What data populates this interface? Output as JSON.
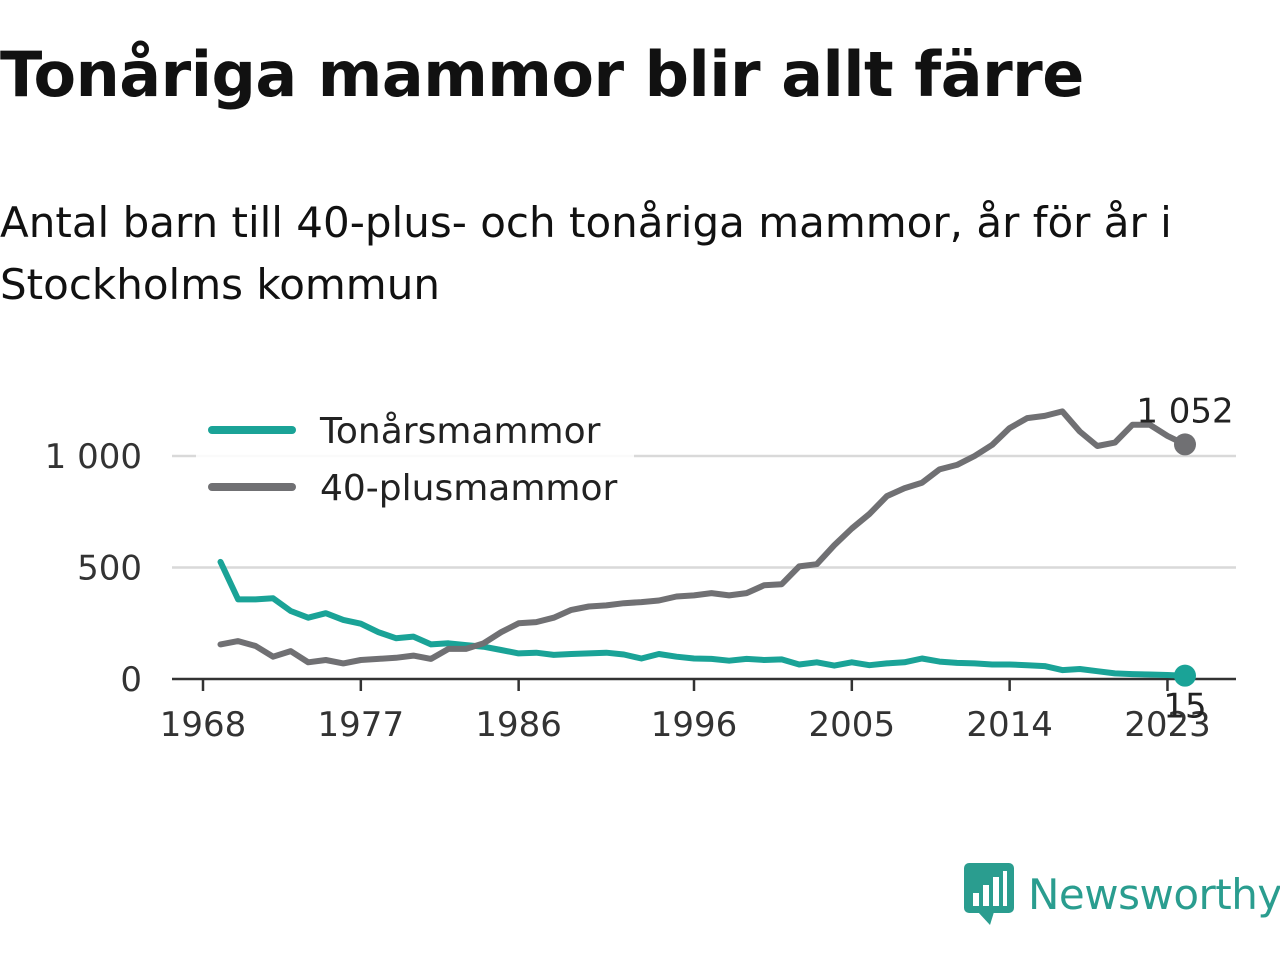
{
  "header": {
    "title": "Tonåriga mammor blir allt färre",
    "subtitle": "Antal barn till 40-plus- och tonåriga mammor, år för år i Stockholms kommun"
  },
  "brand": {
    "name": "Newsworthy",
    "icon": "newsworthy-logo-icon",
    "color": "#2a9d8f"
  },
  "chart_data": {
    "type": "line",
    "title": "Tonåriga mammor blir allt färre",
    "subtitle": "Antal barn till 40-plus- och tonåriga mammor, år för år i Stockholms kommun",
    "xlabel": "",
    "ylabel": "",
    "xlim": [
      1968,
      2025
    ],
    "ylim": [
      0,
      1100
    ],
    "x_ticks": [
      1968,
      1977,
      1986,
      1996,
      2005,
      2014,
      2023
    ],
    "y_ticks": [
      0,
      500,
      1000
    ],
    "y_tick_labels": [
      "0",
      "500",
      "1 000"
    ],
    "grid": "horizontal",
    "legend_position": "top-left",
    "x": [
      1969,
      1970,
      1971,
      1972,
      1973,
      1974,
      1975,
      1976,
      1977,
      1978,
      1979,
      1980,
      1981,
      1982,
      1983,
      1984,
      1985,
      1986,
      1987,
      1988,
      1989,
      1990,
      1991,
      1992,
      1993,
      1994,
      1995,
      1996,
      1997,
      1998,
      1999,
      2000,
      2001,
      2002,
      2003,
      2004,
      2005,
      2006,
      2007,
      2008,
      2009,
      2010,
      2011,
      2012,
      2013,
      2014,
      2015,
      2016,
      2017,
      2018,
      2019,
      2020,
      2021,
      2022,
      2023,
      2024
    ],
    "series": [
      {
        "name": "Tonårsmammor",
        "color": "#1aa397",
        "values": [
          525,
          357,
          357,
          362,
          305,
          275,
          295,
          265,
          248,
          210,
          183,
          190,
          155,
          160,
          152,
          145,
          130,
          115,
          118,
          108,
          112,
          115,
          118,
          110,
          92,
          112,
          100,
          92,
          90,
          82,
          90,
          85,
          88,
          65,
          75,
          60,
          75,
          62,
          70,
          75,
          92,
          78,
          72,
          70,
          65,
          65,
          62,
          58,
          40,
          45,
          35,
          25,
          22,
          20,
          18,
          15
        ],
        "end_label": "15"
      },
      {
        "name": "40-plusmammor",
        "color": "#707073",
        "values": [
          155,
          170,
          148,
          100,
          125,
          75,
          85,
          70,
          85,
          90,
          95,
          105,
          90,
          135,
          135,
          160,
          210,
          250,
          255,
          275,
          310,
          325,
          330,
          340,
          345,
          352,
          370,
          375,
          385,
          375,
          385,
          420,
          425,
          505,
          515,
          600,
          675,
          740,
          820,
          855,
          880,
          940,
          960,
          1000,
          1050,
          1125,
          1170,
          1180,
          1200,
          1110,
          1045,
          1060,
          1140,
          1140,
          1090,
          1052
        ],
        "end_label": "1 052"
      }
    ]
  }
}
